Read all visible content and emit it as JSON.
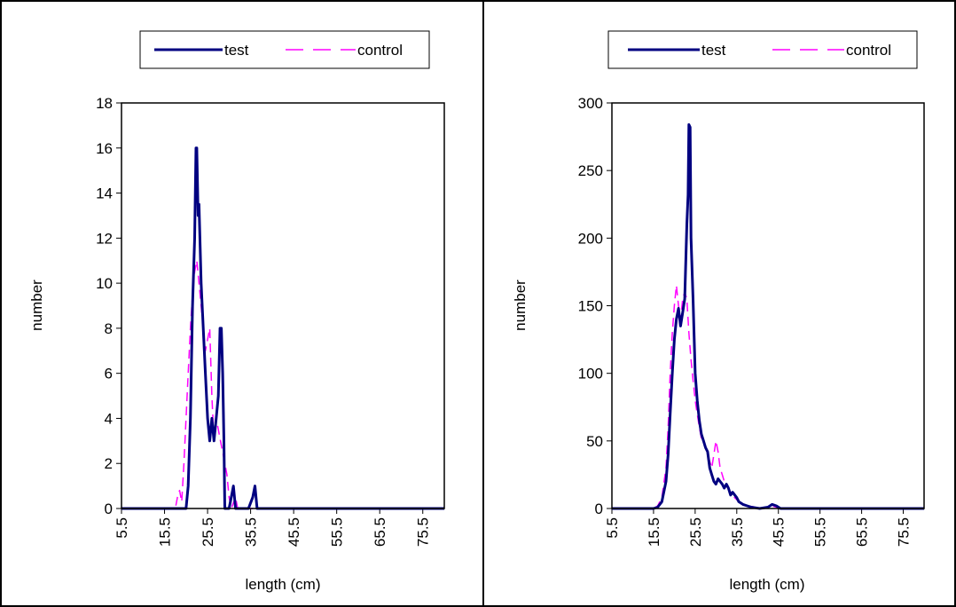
{
  "colors": {
    "test": "#000080",
    "control": "#ff00ff",
    "frame": "#000000",
    "background": "#ffffff"
  },
  "chart_data": [
    {
      "type": "line",
      "xlabel": "length (cm)",
      "ylabel": "number",
      "ylim": [
        0,
        18
      ],
      "yticks": [
        0,
        2,
        4,
        6,
        8,
        10,
        12,
        14,
        16,
        18
      ],
      "xlim": [
        5.5,
        80.5
      ],
      "xtick_labels": [
        "5.5",
        "15.5",
        "25.5",
        "35.5",
        "45.5",
        "55.5",
        "65.5",
        "75.5"
      ],
      "grid": false,
      "legend_position": "top",
      "series": [
        {
          "name": "test",
          "style": "solid",
          "points": [
            [
              5.5,
              0
            ],
            [
              19.5,
              0
            ],
            [
              20.5,
              0
            ],
            [
              21,
              1
            ],
            [
              21.5,
              4
            ],
            [
              22,
              9
            ],
            [
              22.5,
              12
            ],
            [
              22.8,
              16
            ],
            [
              23,
              16
            ],
            [
              23.3,
              13
            ],
            [
              23.5,
              13.5
            ],
            [
              24,
              10
            ],
            [
              24.5,
              8
            ],
            [
              25,
              6
            ],
            [
              25.5,
              4
            ],
            [
              26,
              3
            ],
            [
              26.5,
              4
            ],
            [
              27,
              3
            ],
            [
              27.5,
              4
            ],
            [
              28,
              5
            ],
            [
              28.4,
              8
            ],
            [
              28.7,
              8
            ],
            [
              29,
              6
            ],
            [
              29.3,
              3
            ],
            [
              29.5,
              0
            ],
            [
              30.5,
              0
            ],
            [
              31,
              0.5
            ],
            [
              31.5,
              1
            ],
            [
              32,
              0
            ],
            [
              35,
              0
            ],
            [
              36,
              0.5
            ],
            [
              36.5,
              1
            ],
            [
              37,
              0
            ],
            [
              80.5,
              0
            ]
          ]
        },
        {
          "name": "control",
          "style": "dashed",
          "points": [
            [
              5.5,
              0
            ],
            [
              18,
              0
            ],
            [
              18.5,
              0.5
            ],
            [
              19,
              0.8
            ],
            [
              19.5,
              0.3
            ],
            [
              20,
              2
            ],
            [
              20.5,
              4
            ],
            [
              21,
              6
            ],
            [
              21.5,
              8
            ],
            [
              22,
              9.5
            ],
            [
              22.5,
              10.5
            ],
            [
              23,
              11
            ],
            [
              23.5,
              10
            ],
            [
              24,
              9
            ],
            [
              24.5,
              8
            ],
            [
              25,
              7
            ],
            [
              25.5,
              7.5
            ],
            [
              26,
              8
            ],
            [
              26.5,
              5
            ],
            [
              27,
              3
            ],
            [
              27.5,
              4
            ],
            [
              28,
              3.5
            ],
            [
              28.5,
              3
            ],
            [
              29,
              2.5
            ],
            [
              30,
              1.5
            ],
            [
              30.5,
              0.5
            ],
            [
              31,
              0
            ],
            [
              32,
              0.5
            ],
            [
              32.5,
              0
            ],
            [
              80.5,
              0
            ]
          ]
        }
      ]
    },
    {
      "type": "line",
      "xlabel": "length (cm)",
      "ylabel": "number",
      "ylim": [
        0,
        300
      ],
      "yticks": [
        0,
        50,
        100,
        150,
        200,
        250,
        300
      ],
      "xlim": [
        5.5,
        80.5
      ],
      "xtick_labels": [
        "5.5",
        "15.5",
        "25.5",
        "35.5",
        "45.5",
        "55.5",
        "65.5",
        "75.5"
      ],
      "grid": false,
      "legend_position": "top",
      "series": [
        {
          "name": "test",
          "style": "solid",
          "points": [
            [
              5.5,
              0
            ],
            [
              15.5,
              0
            ],
            [
              16.5,
              1
            ],
            [
              17.5,
              5
            ],
            [
              18.5,
              20
            ],
            [
              19,
              40
            ],
            [
              19.5,
              70
            ],
            [
              20,
              100
            ],
            [
              20.5,
              125
            ],
            [
              21,
              140
            ],
            [
              21.5,
              148
            ],
            [
              22,
              135
            ],
            [
              22.5,
              145
            ],
            [
              23,
              155
            ],
            [
              23.5,
              210
            ],
            [
              23.8,
              232
            ],
            [
              24,
              284
            ],
            [
              24.3,
              282
            ],
            [
              24.5,
              200
            ],
            [
              25,
              155
            ],
            [
              25.5,
              100
            ],
            [
              26,
              80
            ],
            [
              26.5,
              65
            ],
            [
              27,
              55
            ],
            [
              27.5,
              50
            ],
            [
              28,
              45
            ],
            [
              28.5,
              42
            ],
            [
              29,
              30
            ],
            [
              29.5,
              25
            ],
            [
              30,
              20
            ],
            [
              30.5,
              18
            ],
            [
              31,
              22
            ],
            [
              31.5,
              20
            ],
            [
              32,
              18
            ],
            [
              32.5,
              15
            ],
            [
              33,
              18
            ],
            [
              33.5,
              15
            ],
            [
              34,
              10
            ],
            [
              34.5,
              12
            ],
            [
              35,
              10
            ],
            [
              35.5,
              8
            ],
            [
              36,
              5
            ],
            [
              37,
              3
            ],
            [
              38,
              2
            ],
            [
              39,
              1
            ],
            [
              40,
              0.5
            ],
            [
              41,
              0
            ],
            [
              43,
              1
            ],
            [
              44,
              3
            ],
            [
              45,
              2
            ],
            [
              46,
              0
            ],
            [
              80.5,
              0
            ]
          ]
        },
        {
          "name": "control",
          "style": "dashed",
          "points": [
            [
              5.5,
              0
            ],
            [
              15.5,
              0
            ],
            [
              16.5,
              2
            ],
            [
              17.5,
              8
            ],
            [
              18.5,
              30
            ],
            [
              19,
              60
            ],
            [
              19.5,
              100
            ],
            [
              20,
              130
            ],
            [
              20.5,
              150
            ],
            [
              21,
              165
            ],
            [
              21.5,
              150
            ],
            [
              22,
              140
            ],
            [
              22.5,
              155
            ],
            [
              23,
              160
            ],
            [
              23.5,
              155
            ],
            [
              24,
              130
            ],
            [
              24.5,
              110
            ],
            [
              25,
              95
            ],
            [
              25.5,
              80
            ],
            [
              26,
              70
            ],
            [
              26.5,
              60
            ],
            [
              27,
              52
            ],
            [
              27.5,
              50
            ],
            [
              28,
              45
            ],
            [
              28.5,
              40
            ],
            [
              29,
              35
            ],
            [
              29.5,
              30
            ],
            [
              30,
              40
            ],
            [
              30.5,
              50
            ],
            [
              31,
              42
            ],
            [
              31.5,
              30
            ],
            [
              32,
              25
            ],
            [
              32.5,
              20
            ],
            [
              33,
              18
            ],
            [
              33.5,
              15
            ],
            [
              34,
              12
            ],
            [
              35,
              8
            ],
            [
              36,
              5
            ],
            [
              37,
              3
            ],
            [
              38,
              2
            ],
            [
              40,
              1
            ],
            [
              42,
              0
            ],
            [
              43,
              1
            ],
            [
              44,
              2
            ],
            [
              45,
              1
            ],
            [
              46,
              0
            ],
            [
              80.5,
              0
            ]
          ]
        }
      ]
    }
  ]
}
